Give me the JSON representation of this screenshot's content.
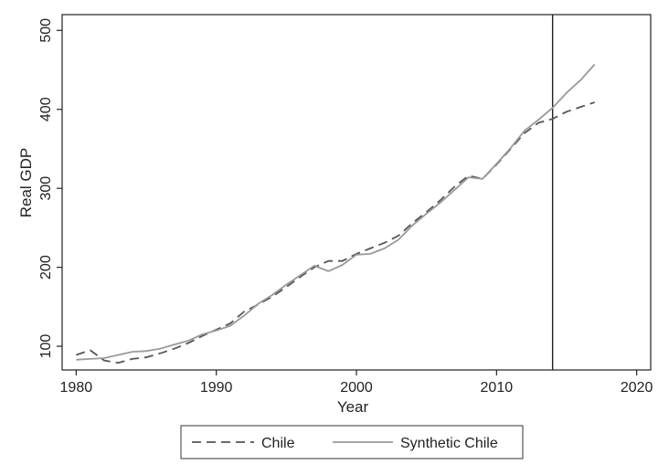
{
  "chart_data": {
    "type": "line",
    "xlabel": "Year",
    "ylabel": "Real GDP",
    "xlim": [
      1979,
      2021
    ],
    "ylim": [
      70,
      520
    ],
    "x_ticks": [
      1980,
      1990,
      2000,
      2010,
      2020
    ],
    "y_ticks": [
      100,
      200,
      300,
      400,
      500
    ],
    "grid": false,
    "legend_position": "bottom",
    "vertical_reference_line": {
      "x": 2014
    },
    "x": [
      1980,
      1981,
      1982,
      1983,
      1984,
      1985,
      1986,
      1987,
      1988,
      1989,
      1990,
      1991,
      1992,
      1993,
      1994,
      1995,
      1996,
      1997,
      1998,
      1999,
      2000,
      2001,
      2002,
      2003,
      2004,
      2005,
      2006,
      2007,
      2008,
      2009,
      2010,
      2011,
      2012,
      2013,
      2014,
      2015,
      2016,
      2017
    ],
    "series": [
      {
        "name": "Chile",
        "style": "dashed",
        "color": "#555555",
        "values": [
          89,
          95,
          82,
          79,
          84,
          86,
          91,
          97,
          104,
          113,
          121,
          129,
          144,
          153,
          163,
          175,
          188,
          200,
          208,
          208,
          217,
          224,
          231,
          240,
          256,
          270,
          285,
          302,
          316,
          312,
          330,
          350,
          370,
          383,
          388,
          397,
          403,
          409
        ]
      },
      {
        "name": "Synthetic Chile",
        "style": "solid",
        "color": "#9a9a9a",
        "values": [
          83,
          84,
          85,
          89,
          93,
          94,
          97,
          102,
          107,
          115,
          120,
          126,
          139,
          154,
          165,
          178,
          190,
          202,
          195,
          203,
          216,
          217,
          224,
          235,
          253,
          268,
          282,
          298,
          314,
          312,
          331,
          351,
          373,
          387,
          402,
          421,
          437,
          457
        ]
      }
    ]
  }
}
